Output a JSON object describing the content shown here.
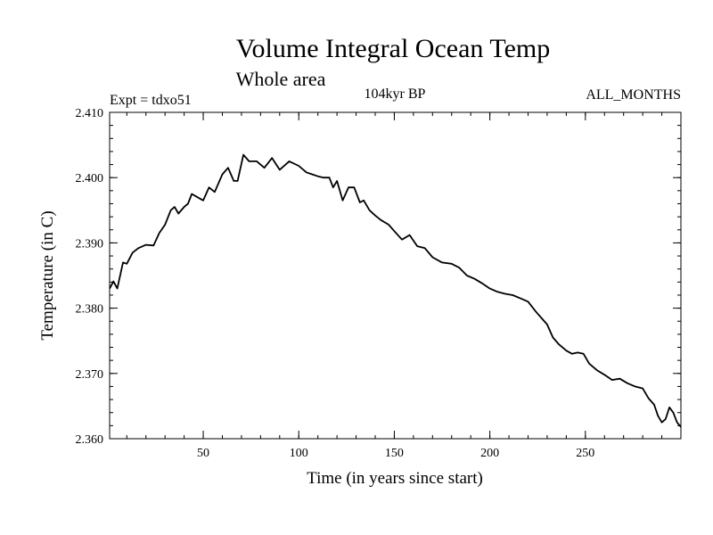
{
  "chart_data": {
    "type": "line",
    "title": "Volume Integral Ocean Temp",
    "subtitle": "Whole area",
    "experiment_label": "Expt = tdxo51",
    "period_label": "104kyr BP",
    "months_label": "ALL_MONTHS",
    "xlabel": "Time (in years since start)",
    "ylabel": "Temperature (in C)",
    "xlim": [
      1,
      300
    ],
    "ylim": [
      2.36,
      2.41
    ],
    "x_ticks": [
      50,
      100,
      150,
      200,
      250
    ],
    "x_tick_labels": [
      "50",
      "100",
      "150",
      "200",
      "250"
    ],
    "y_ticks": [
      2.36,
      2.37,
      2.38,
      2.39,
      2.4,
      2.41
    ],
    "y_tick_labels": [
      "2.360",
      "2.370",
      "2.380",
      "2.390",
      "2.400",
      "2.410"
    ],
    "grid": false,
    "series": [
      {
        "name": "Volume Integral Ocean Temp",
        "x": [
          1,
          3,
          5,
          8,
          10,
          13,
          16,
          20,
          24,
          27,
          30,
          33,
          35,
          37,
          40,
          42,
          44,
          47,
          50,
          53,
          56,
          60,
          63,
          66,
          68,
          71,
          74,
          78,
          82,
          86,
          90,
          95,
          100,
          104,
          107,
          110,
          113,
          116,
          118,
          120,
          123,
          126,
          129,
          132,
          134,
          137,
          140,
          143,
          147,
          150,
          154,
          158,
          162,
          166,
          170,
          175,
          180,
          184,
          188,
          192,
          196,
          200,
          204,
          208,
          212,
          216,
          220,
          224,
          227,
          230,
          233,
          236,
          240,
          243,
          246,
          249,
          252,
          256,
          260,
          264,
          268,
          272,
          276,
          280,
          283,
          286,
          288,
          290,
          292,
          294,
          296,
          298,
          300
        ],
        "values": [
          2.383,
          2.3841,
          2.383,
          2.387,
          2.3868,
          2.3885,
          2.3892,
          2.3897,
          2.3896,
          2.3915,
          2.3928,
          2.395,
          2.3955,
          2.3945,
          2.3955,
          2.396,
          2.3975,
          2.397,
          2.3965,
          2.3985,
          2.3978,
          2.4005,
          2.4015,
          2.3995,
          2.3995,
          2.4035,
          2.4025,
          2.4025,
          2.4015,
          2.403,
          2.4012,
          2.4025,
          2.4018,
          2.4008,
          2.4005,
          2.4002,
          2.4,
          2.4,
          2.3985,
          2.3995,
          2.3965,
          2.3985,
          2.3985,
          2.3962,
          2.3965,
          2.395,
          2.3942,
          2.3935,
          2.3928,
          2.3918,
          2.3905,
          2.3912,
          2.3895,
          2.3892,
          2.3878,
          2.387,
          2.3868,
          2.3862,
          2.385,
          2.3845,
          2.3838,
          2.383,
          2.3825,
          2.3822,
          2.382,
          2.3815,
          2.381,
          2.3795,
          2.3785,
          2.3775,
          2.3755,
          2.3745,
          2.3735,
          2.373,
          2.3732,
          2.373,
          2.3715,
          2.3705,
          2.3698,
          2.369,
          2.3692,
          2.3685,
          2.368,
          2.3677,
          2.3662,
          2.3652,
          2.3635,
          2.3625,
          2.363,
          2.3648,
          2.364,
          2.3625,
          2.3618
        ]
      }
    ]
  }
}
